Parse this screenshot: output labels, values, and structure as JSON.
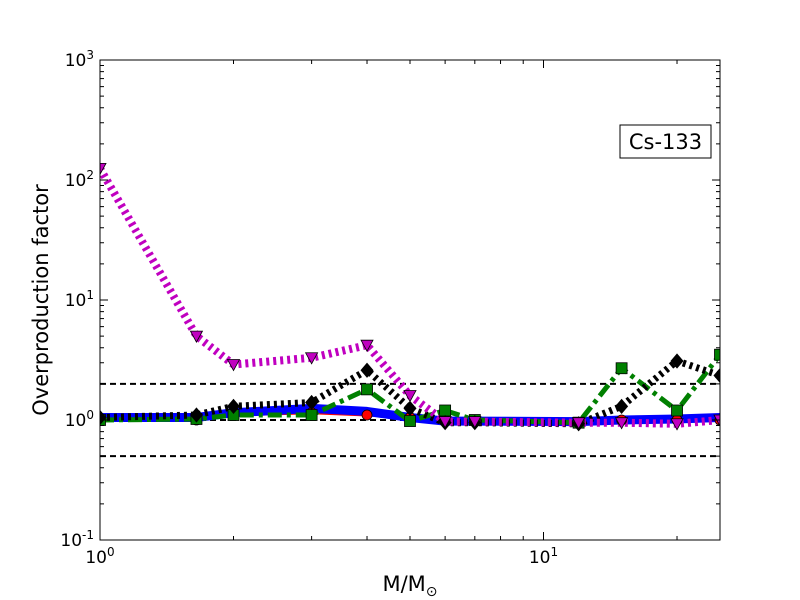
{
  "chart_data": {
    "type": "line",
    "ylabel": "Overproduction factor",
    "xlabel": "M/M",
    "xlabel_sub": "⊙",
    "x_scale": "log",
    "y_scale": "log",
    "xlim": [
      1,
      25
    ],
    "ylim": [
      0.1,
      1000
    ],
    "x_ticks": [
      {
        "value": 1,
        "base": "10",
        "exp": "0"
      },
      {
        "value": 10,
        "base": "10",
        "exp": "1"
      }
    ],
    "y_ticks": [
      {
        "value": 0.1,
        "base": "10",
        "exp": "-1"
      },
      {
        "value": 1,
        "base": "10",
        "exp": "0"
      },
      {
        "value": 10,
        "base": "10",
        "exp": "1"
      },
      {
        "value": 100,
        "base": "10",
        "exp": "2"
      },
      {
        "value": 1000,
        "base": "10",
        "exp": "3"
      }
    ],
    "reference_lines": [
      0.5,
      1,
      2
    ],
    "annotation": "Cs-133",
    "series": [
      {
        "color": "#ff0000",
        "linestyle": "solid",
        "marker": "circle",
        "x": [
          1,
          1.65,
          2,
          3,
          4,
          5,
          6,
          7,
          12,
          15,
          20,
          25
        ],
        "y": [
          1.0,
          1.0,
          1.1,
          1.15,
          1.1,
          1.05,
          1.0,
          1.0,
          0.95,
          1.0,
          1.0,
          1.0
        ]
      },
      {
        "color": "#0000ff",
        "linestyle": "solid",
        "marker": "none",
        "x": [
          1,
          1.65,
          2,
          3,
          4,
          5,
          6,
          7,
          12,
          15,
          20,
          25
        ],
        "y": [
          1.05,
          1.05,
          1.15,
          1.25,
          1.18,
          1.05,
          0.98,
          0.98,
          0.97,
          1.0,
          1.02,
          1.05
        ]
      },
      {
        "color": "#008000",
        "linestyle": "dashdot",
        "marker": "square",
        "x": [
          1,
          1.65,
          2,
          3,
          4,
          5,
          6,
          7,
          12,
          15,
          20,
          25
        ],
        "y": [
          1.0,
          1.02,
          1.1,
          1.1,
          1.8,
          0.98,
          1.2,
          1.0,
          0.95,
          2.7,
          1.2,
          3.5
        ]
      },
      {
        "color": "#000000",
        "linestyle": "dotted",
        "marker": "diamond",
        "x": [
          1,
          1.65,
          2,
          3,
          4,
          5,
          6,
          7,
          12,
          15,
          20,
          25
        ],
        "y": [
          1.05,
          1.1,
          1.3,
          1.4,
          2.6,
          1.25,
          0.95,
          0.95,
          0.93,
          1.3,
          3.1,
          2.35
        ]
      },
      {
        "color": "#c000c0",
        "linestyle": "dotted",
        "marker": "triangle-down",
        "x": [
          1,
          1.65,
          2,
          3,
          4,
          5,
          6,
          7,
          12,
          15,
          20,
          25
        ],
        "y": [
          125,
          5.0,
          2.9,
          3.3,
          4.2,
          1.6,
          0.97,
          0.97,
          0.95,
          0.95,
          0.93,
          1.0
        ]
      }
    ]
  }
}
